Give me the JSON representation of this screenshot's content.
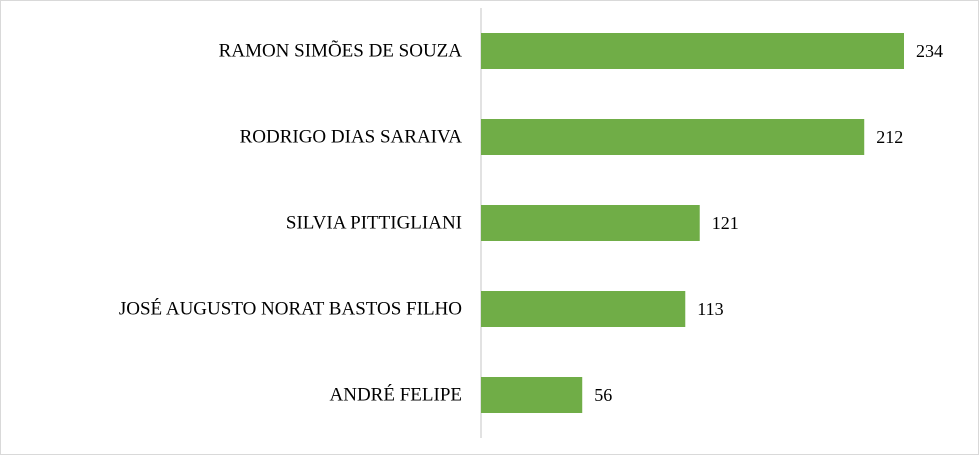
{
  "chart_data": {
    "type": "barh",
    "categories": [
      "RAMON SIMÕES DE SOUZA",
      "RODRIGO DIAS SARAIVA",
      "SILVIA PITTIGLIANI",
      "JOSÉ AUGUSTO NORAT BASTOS FILHO",
      "ANDRÉ FELIPE"
    ],
    "values": [
      234,
      212,
      121,
      113,
      56
    ],
    "color": "#70ad47"
  }
}
